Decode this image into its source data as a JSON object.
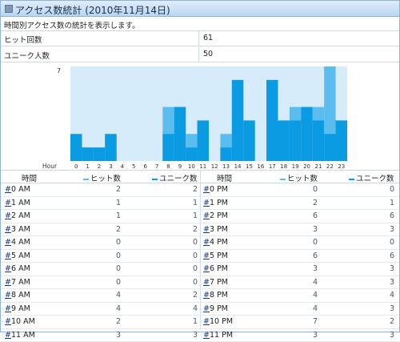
{
  "title": "アクセス数統計 (2010年11月14日)",
  "description": "時間別アクセス数の統計を表示します。",
  "summary": [
    {
      "label": "ヒット回数",
      "value": "61"
    },
    {
      "label": "ユニーク人数",
      "value": "50"
    }
  ],
  "colors": {
    "hits": "#5bbcee",
    "uniques": "#0a9be3",
    "plot_bg": "#d6ecfb"
  },
  "table_headers": {
    "time": "時間",
    "hits": "ヒット数",
    "uniques": "ユニーク数"
  },
  "am_rows": [
    {
      "hash": "#",
      "time": " 0 AM",
      "hits": "2",
      "uniques": "2"
    },
    {
      "hash": "#",
      "time": " 1 AM",
      "hits": "1",
      "uniques": "1"
    },
    {
      "hash": "#",
      "time": " 2 AM",
      "hits": "1",
      "uniques": "1"
    },
    {
      "hash": "#",
      "time": " 3 AM",
      "hits": "2",
      "uniques": "2"
    },
    {
      "hash": "#",
      "time": " 4 AM",
      "hits": "0",
      "uniques": "0"
    },
    {
      "hash": "#",
      "time": " 5 AM",
      "hits": "0",
      "uniques": "0"
    },
    {
      "hash": "#",
      "time": " 6 AM",
      "hits": "0",
      "uniques": "0"
    },
    {
      "hash": "#",
      "time": " 7 AM",
      "hits": "0",
      "uniques": "0"
    },
    {
      "hash": "#",
      "time": " 8 AM",
      "hits": "4",
      "uniques": "2"
    },
    {
      "hash": "#",
      "time": " 9 AM",
      "hits": "4",
      "uniques": "4"
    },
    {
      "hash": "#",
      "time": "10 AM",
      "hits": "2",
      "uniques": "1"
    },
    {
      "hash": "#",
      "time": "11 AM",
      "hits": "3",
      "uniques": "3"
    }
  ],
  "pm_rows": [
    {
      "hash": "#",
      "time": " 0 PM",
      "hits": "0",
      "uniques": "0"
    },
    {
      "hash": "#",
      "time": " 1 PM",
      "hits": "2",
      "uniques": "1"
    },
    {
      "hash": "#",
      "time": " 2 PM",
      "hits": "6",
      "uniques": "6"
    },
    {
      "hash": "#",
      "time": " 3 PM",
      "hits": "3",
      "uniques": "3"
    },
    {
      "hash": "#",
      "time": " 4 PM",
      "hits": "0",
      "uniques": "0"
    },
    {
      "hash": "#",
      "time": " 5 PM",
      "hits": "6",
      "uniques": "6"
    },
    {
      "hash": "#",
      "time": " 6 PM",
      "hits": "3",
      "uniques": "3"
    },
    {
      "hash": "#",
      "time": " 7 PM",
      "hits": "4",
      "uniques": "3"
    },
    {
      "hash": "#",
      "time": " 8 PM",
      "hits": "4",
      "uniques": "4"
    },
    {
      "hash": "#",
      "time": " 9 PM",
      "hits": "4",
      "uniques": "3"
    },
    {
      "hash": "#",
      "time": "10 PM",
      "hits": "7",
      "uniques": "2"
    },
    {
      "hash": "#",
      "time": "11 PM",
      "hits": "3",
      "uniques": "3"
    }
  ],
  "chart_data": {
    "type": "bar",
    "xlabel": "Hour",
    "ylabel": "",
    "ylim": [
      0,
      7
    ],
    "ytick_labels": [
      "7"
    ],
    "categories": [
      "0",
      "1",
      "2",
      "3",
      "4",
      "5",
      "6",
      "7",
      "8",
      "9",
      "10",
      "11",
      "12",
      "13",
      "14",
      "15",
      "16",
      "17",
      "18",
      "19",
      "20",
      "21",
      "22",
      "23"
    ],
    "series": [
      {
        "name": "ヒット数",
        "values": [
          2,
          1,
          1,
          2,
          0,
          0,
          0,
          0,
          4,
          4,
          2,
          3,
          0,
          2,
          6,
          3,
          0,
          6,
          3,
          4,
          4,
          4,
          7,
          3
        ]
      },
      {
        "name": "ユニーク数",
        "values": [
          2,
          1,
          1,
          2,
          0,
          0,
          0,
          0,
          2,
          4,
          1,
          3,
          0,
          1,
          6,
          3,
          0,
          6,
          3,
          3,
          4,
          3,
          2,
          3
        ]
      }
    ]
  }
}
